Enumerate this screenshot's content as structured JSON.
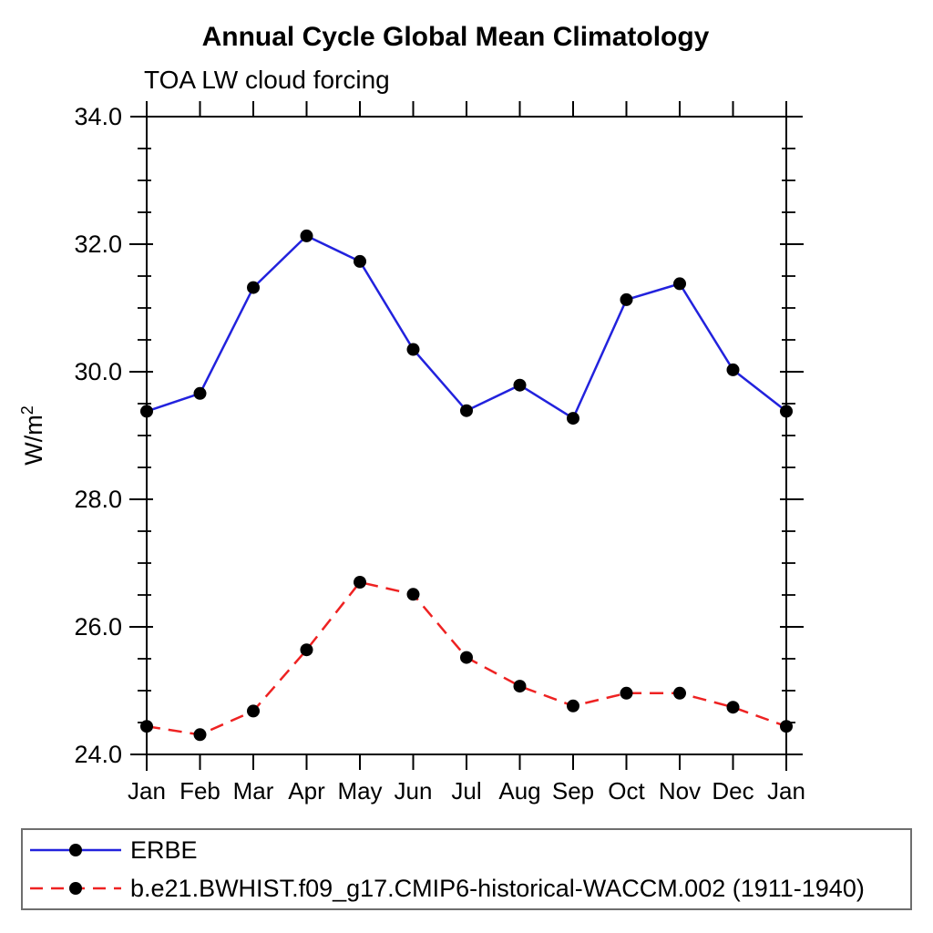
{
  "page": {
    "title": "Annual Cycle Global Mean Climatology",
    "subtitle": "TOA LW cloud forcing"
  },
  "chart_data": {
    "type": "line",
    "title": "Annual Cycle Global Mean Climatology",
    "subtitle": "TOA LW cloud forcing",
    "ylabel_base": "W/m",
    "ylabel_exponent": "2",
    "categories": [
      "Jan",
      "Feb",
      "Mar",
      "Apr",
      "May",
      "Jun",
      "Jul",
      "Aug",
      "Sep",
      "Oct",
      "Nov",
      "Dec",
      "Jan"
    ],
    "ylim": [
      24.0,
      34.0
    ],
    "ytick_major_step": 2.0,
    "ytick_minor_step": 0.5,
    "ytick_labels": [
      "24.0",
      "26.0",
      "28.0",
      "30.0",
      "32.0",
      "34.0"
    ],
    "grid": false,
    "legend_position": "bottom",
    "axis_color": "#000000",
    "marker_color": "#000000",
    "series": [
      {
        "name": "ERBE",
        "color": "#2222dd",
        "line_style": "solid",
        "marker": "circle",
        "values": [
          29.38,
          29.66,
          31.32,
          32.13,
          31.73,
          30.35,
          29.39,
          29.79,
          29.27,
          31.13,
          31.38,
          30.03,
          29.38
        ]
      },
      {
        "name": "b.e21.BWHIST.f09_g17.CMIP6-historical-WACCM.002 (1911-1940)",
        "color": "#ee2222",
        "line_style": "dashed",
        "marker": "circle",
        "values": [
          24.44,
          24.31,
          24.68,
          25.64,
          26.7,
          26.51,
          25.52,
          25.07,
          24.76,
          24.96,
          24.96,
          24.74,
          24.44
        ]
      }
    ]
  }
}
